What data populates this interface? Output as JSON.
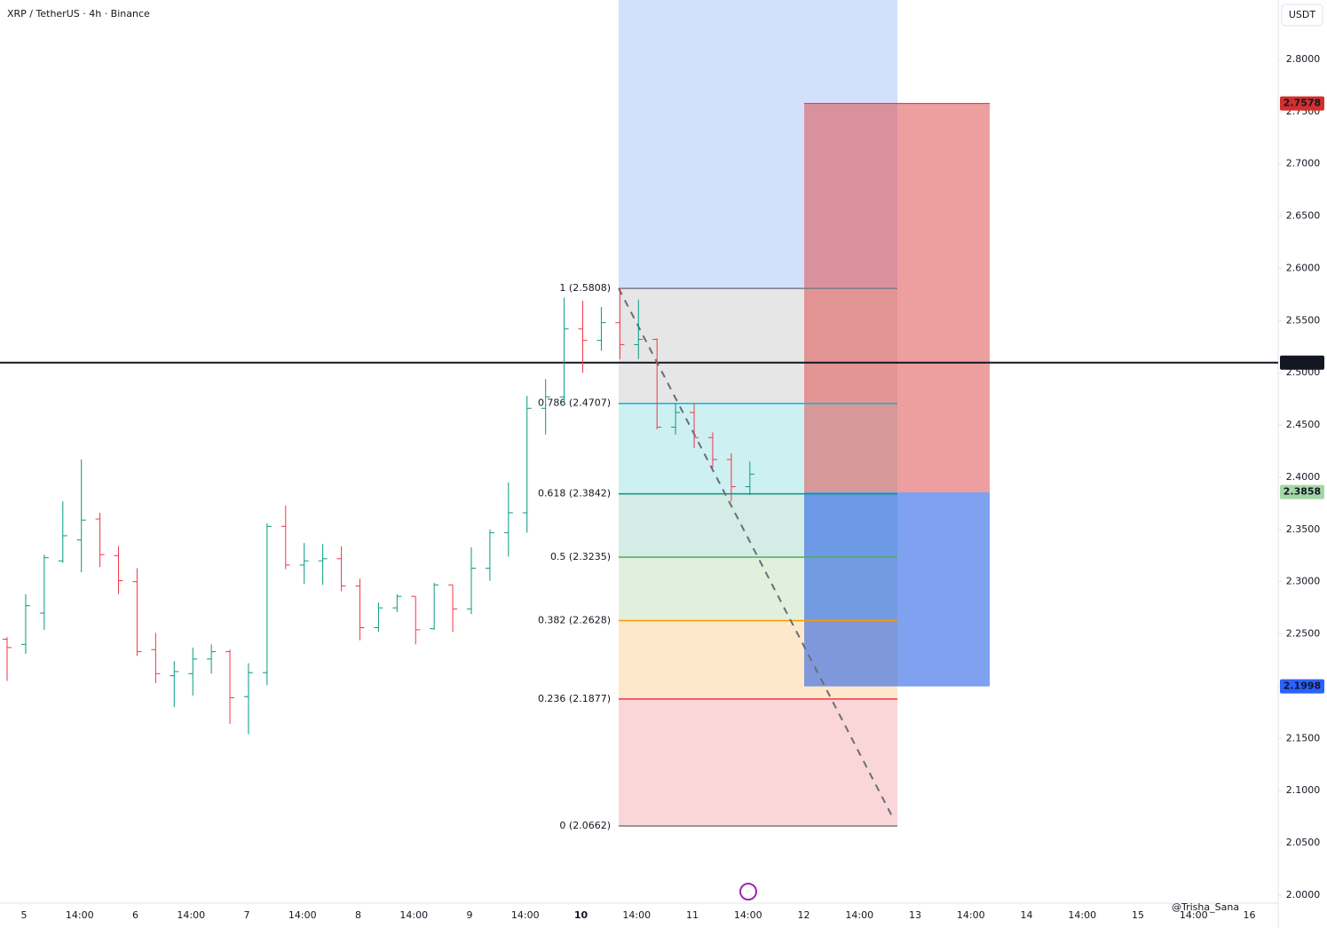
{
  "chart_data": {
    "type": "ohlc",
    "title": "XRP / TetherUS · 4h · Binance",
    "currency": "USDT",
    "ylim": [
      1.9923,
      2.8569
    ],
    "yticks": [
      {
        "value": 2.0,
        "label": "2.0000"
      },
      {
        "value": 2.05,
        "label": "2.0500"
      },
      {
        "value": 2.1,
        "label": "2.1000"
      },
      {
        "value": 2.15,
        "label": "2.1500"
      },
      {
        "value": 2.2,
        "label": "2.2000"
      },
      {
        "value": 2.25,
        "label": "2.2500"
      },
      {
        "value": 2.3,
        "label": "2.3000"
      },
      {
        "value": 2.35,
        "label": "2.3500"
      },
      {
        "value": 2.4,
        "label": "2.4000"
      },
      {
        "value": 2.45,
        "label": "2.4500"
      },
      {
        "value": 2.5,
        "label": "2.5000"
      },
      {
        "value": 2.55,
        "label": "2.5500"
      },
      {
        "value": 2.6,
        "label": "2.6000"
      },
      {
        "value": 2.65,
        "label": "2.6500"
      },
      {
        "value": 2.7,
        "label": "2.7000"
      },
      {
        "value": 2.75,
        "label": "2.7500"
      },
      {
        "value": 2.8,
        "label": "2.8000"
      }
    ],
    "xticks": [
      "5",
      "14:00",
      "6",
      "14:00",
      "7",
      "14:00",
      "8",
      "14:00",
      "9",
      "14:00",
      "10",
      "14:00",
      "11",
      "14:00",
      "12",
      "14:00",
      "13",
      "14:00",
      "14",
      "14:00",
      "15",
      "14:00",
      "16"
    ],
    "up_color": "#089981",
    "down_color": "#f23645",
    "open": [
      2.245,
      2.24,
      2.27,
      2.32,
      2.34,
      2.36,
      2.325,
      2.3,
      2.235,
      2.21,
      2.212,
      2.226,
      2.233,
      2.19,
      2.213,
      2.353,
      2.316,
      2.32,
      2.322,
      2.296,
      2.256,
      2.275,
      2.286,
      2.255,
      2.297,
      2.274,
      2.313,
      2.347,
      2.366,
      2.466,
      2.477,
      2.542,
      2.531,
      2.548,
      2.527,
      2.532,
      2.448,
      2.462,
      2.438,
      2.417,
      2.391
    ],
    "high": [
      2.247,
      2.288,
      2.326,
      2.377,
      2.417,
      2.366,
      2.334,
      2.313,
      2.251,
      2.224,
      2.237,
      2.24,
      2.235,
      2.222,
      2.356,
      2.373,
      2.337,
      2.336,
      2.334,
      2.303,
      2.28,
      2.288,
      2.286,
      2.299,
      2.297,
      2.333,
      2.35,
      2.395,
      2.478,
      2.494,
      2.572,
      2.569,
      2.563,
      2.581,
      2.57,
      2.533,
      2.471,
      2.471,
      2.443,
      2.423,
      2.415
    ],
    "low": [
      2.205,
      2.231,
      2.254,
      2.318,
      2.309,
      2.314,
      2.288,
      2.229,
      2.203,
      2.18,
      2.191,
      2.212,
      2.164,
      2.154,
      2.201,
      2.312,
      2.298,
      2.297,
      2.291,
      2.244,
      2.252,
      2.271,
      2.24,
      2.254,
      2.252,
      2.269,
      2.301,
      2.324,
      2.347,
      2.441,
      2.471,
      2.5,
      2.521,
      2.513,
      2.513,
      2.446,
      2.441,
      2.428,
      2.409,
      2.377,
      2.383
    ],
    "close": [
      2.237,
      2.277,
      2.323,
      2.344,
      2.359,
      2.326,
      2.301,
      2.233,
      2.212,
      2.214,
      2.226,
      2.233,
      2.189,
      2.213,
      2.353,
      2.316,
      2.32,
      2.322,
      2.296,
      2.256,
      2.275,
      2.286,
      2.254,
      2.297,
      2.274,
      2.313,
      2.347,
      2.366,
      2.466,
      2.477,
      2.542,
      2.531,
      2.548,
      2.527,
      2.532,
      2.448,
      2.462,
      2.438,
      2.417,
      2.391,
      2.403
    ],
    "fib": {
      "top_color": "#d3e0fd",
      "levels": [
        {
          "label": "1 (2.5808)",
          "value": 2.5808,
          "color": "#787b86",
          "fill": "#e6e6e6"
        },
        {
          "label": "0.786 (2.4707)",
          "value": 2.4707,
          "color": "#00bcd4",
          "fill": "#cdf0f2"
        },
        {
          "label": "0.618 (2.3842)",
          "value": 2.3842,
          "color": "#089981",
          "fill": "#d3ece6"
        },
        {
          "label": "0.5 (2.3235)",
          "value": 2.3235,
          "color": "#4caf50",
          "fill": "#e0f0dd"
        },
        {
          "label": "0.382 (2.2628)",
          "value": 2.2628,
          "color": "#ff9800",
          "fill": "#fde8cb"
        },
        {
          "label": "0.236 (2.1877)",
          "value": 2.1877,
          "color": "#f23645",
          "fill": "#fad6d9"
        },
        {
          "label": "0 (2.0662)",
          "value": 2.0662,
          "color": "#787b86"
        }
      ]
    },
    "position": {
      "stop": 2.7578,
      "entry": 2.3858,
      "target": 2.1998
    },
    "price_labels": [
      {
        "value": 2.7578,
        "bg": "#d32f2f"
      },
      {
        "value": 2.5097,
        "bg": "#131722"
      },
      {
        "value": 2.3858,
        "bg": "#a5d6a7"
      },
      {
        "value": 2.1998,
        "bg": "#2962ff"
      }
    ],
    "hline": 2.5097,
    "watermark": "@Trisha_Sana"
  }
}
